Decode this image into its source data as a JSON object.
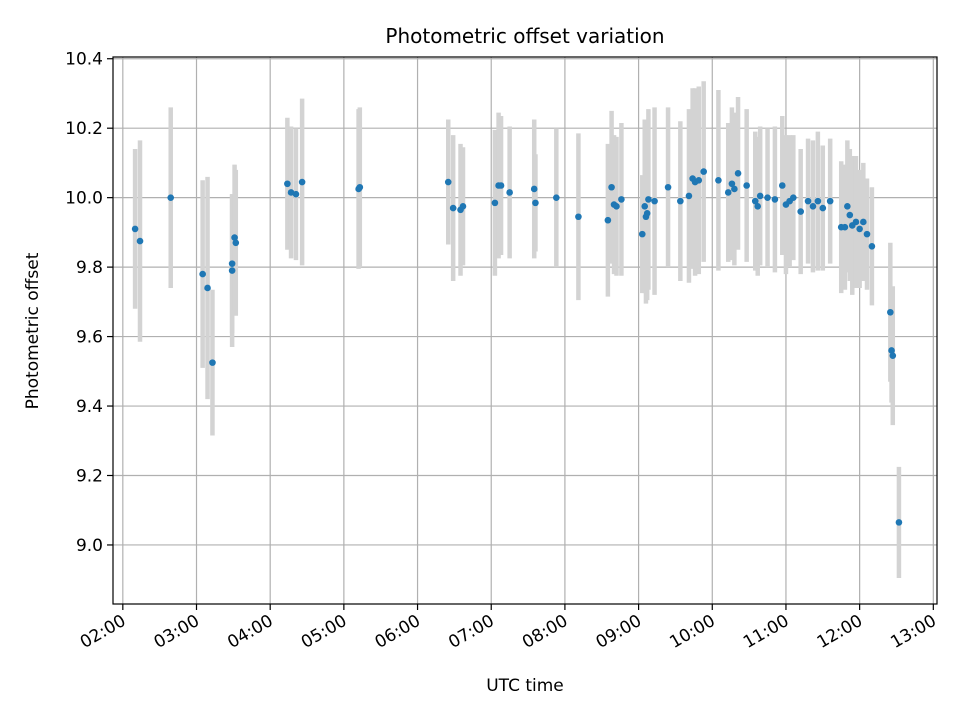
{
  "chart_data": {
    "type": "scatter",
    "title": "Photometric offset variation",
    "xlabel": "UTC time",
    "ylabel": "Photometric offset",
    "xlim": [
      "01:52",
      "13:03"
    ],
    "ylim": [
      8.83,
      10.405
    ],
    "x_ticks": [
      "02:00",
      "03:00",
      "04:00",
      "05:00",
      "06:00",
      "07:00",
      "08:00",
      "09:00",
      "10:00",
      "11:00",
      "12:00",
      "13:00"
    ],
    "y_ticks": [
      "9.0",
      "9.2",
      "9.4",
      "9.6",
      "9.8",
      "10.0",
      "10.2",
      "10.4"
    ],
    "grid": true,
    "colors": {
      "point": "#1f77b4",
      "errorbar": "#d3d3d3",
      "grid": "#b0b0b0"
    },
    "points": [
      {
        "x": "02:10",
        "y": 9.91,
        "err": 0.23
      },
      {
        "x": "02:14",
        "y": 9.875,
        "err": 0.29
      },
      {
        "x": "02:39",
        "y": 10.0,
        "err": 0.26
      },
      {
        "x": "03:05",
        "y": 9.78,
        "err": 0.27
      },
      {
        "x": "03:09",
        "y": 9.74,
        "err": 0.32
      },
      {
        "x": "03:13",
        "y": 9.525,
        "err": 0.21
      },
      {
        "x": "03:29",
        "y": 9.81,
        "err": 0.2
      },
      {
        "x": "03:29",
        "y": 9.79,
        "err": 0.22
      },
      {
        "x": "03:31",
        "y": 9.885,
        "err": 0.21
      },
      {
        "x": "03:32",
        "y": 9.87,
        "err": 0.21
      },
      {
        "x": "04:14",
        "y": 10.04,
        "err": 0.19
      },
      {
        "x": "04:17",
        "y": 10.015,
        "err": 0.19
      },
      {
        "x": "04:21",
        "y": 10.01,
        "err": 0.19
      },
      {
        "x": "04:26",
        "y": 10.045,
        "err": 0.24
      },
      {
        "x": "05:12",
        "y": 10.025,
        "err": 0.23
      },
      {
        "x": "05:13",
        "y": 10.03,
        "err": 0.23
      },
      {
        "x": "06:25",
        "y": 10.045,
        "err": 0.18
      },
      {
        "x": "06:29",
        "y": 9.97,
        "err": 0.21
      },
      {
        "x": "06:35",
        "y": 9.965,
        "err": 0.19
      },
      {
        "x": "06:37",
        "y": 9.975,
        "err": 0.17
      },
      {
        "x": "07:03",
        "y": 9.985,
        "err": 0.21
      },
      {
        "x": "07:06",
        "y": 10.035,
        "err": 0.21
      },
      {
        "x": "07:08",
        "y": 10.035,
        "err": 0.2
      },
      {
        "x": "07:15",
        "y": 10.015,
        "err": 0.19
      },
      {
        "x": "07:35",
        "y": 10.025,
        "err": 0.2
      },
      {
        "x": "07:36",
        "y": 9.985,
        "err": 0.14
      },
      {
        "x": "07:53",
        "y": 10.0,
        "err": 0.2
      },
      {
        "x": "08:11",
        "y": 9.945,
        "err": 0.24
      },
      {
        "x": "08:35",
        "y": 9.935,
        "err": 0.22
      },
      {
        "x": "08:38",
        "y": 10.03,
        "err": 0.22
      },
      {
        "x": "08:40",
        "y": 9.98,
        "err": 0.2
      },
      {
        "x": "08:42",
        "y": 9.975,
        "err": 0.2
      },
      {
        "x": "08:46",
        "y": 9.995,
        "err": 0.22
      },
      {
        "x": "09:03",
        "y": 9.895,
        "err": 0.17
      },
      {
        "x": "09:05",
        "y": 9.975,
        "err": 0.25
      },
      {
        "x": "09:06",
        "y": 9.945,
        "err": 0.25
      },
      {
        "x": "09:07",
        "y": 9.955,
        "err": 0.25
      },
      {
        "x": "09:08",
        "y": 9.995,
        "err": 0.26
      },
      {
        "x": "09:13",
        "y": 9.99,
        "err": 0.27
      },
      {
        "x": "09:24",
        "y": 10.03,
        "err": 0.23
      },
      {
        "x": "09:34",
        "y": 9.99,
        "err": 0.23
      },
      {
        "x": "09:41",
        "y": 10.005,
        "err": 0.25
      },
      {
        "x": "09:44",
        "y": 10.055,
        "err": 0.26
      },
      {
        "x": "09:46",
        "y": 10.045,
        "err": 0.27
      },
      {
        "x": "09:49",
        "y": 10.05,
        "err": 0.27
      },
      {
        "x": "09:53",
        "y": 10.075,
        "err": 0.26
      },
      {
        "x": "10:05",
        "y": 10.05,
        "err": 0.26
      },
      {
        "x": "10:13",
        "y": 10.015,
        "err": 0.2
      },
      {
        "x": "10:16",
        "y": 10.04,
        "err": 0.22
      },
      {
        "x": "10:18",
        "y": 10.025,
        "err": 0.22
      },
      {
        "x": "10:21",
        "y": 10.07,
        "err": 0.22
      },
      {
        "x": "10:28",
        "y": 10.035,
        "err": 0.22
      },
      {
        "x": "10:35",
        "y": 9.99,
        "err": 0.2
      },
      {
        "x": "10:37",
        "y": 9.975,
        "err": 0.2
      },
      {
        "x": "10:39",
        "y": 10.005,
        "err": 0.2
      },
      {
        "x": "10:45",
        "y": 10.0,
        "err": 0.2
      },
      {
        "x": "10:51",
        "y": 9.995,
        "err": 0.21
      },
      {
        "x": "10:57",
        "y": 10.035,
        "err": 0.2
      },
      {
        "x": "11:00",
        "y": 9.98,
        "err": 0.2
      },
      {
        "x": "11:03",
        "y": 9.99,
        "err": 0.19
      },
      {
        "x": "11:06",
        "y": 10.0,
        "err": 0.18
      },
      {
        "x": "11:12",
        "y": 9.96,
        "err": 0.18
      },
      {
        "x": "11:18",
        "y": 9.99,
        "err": 0.18
      },
      {
        "x": "11:22",
        "y": 9.975,
        "err": 0.19
      },
      {
        "x": "11:26",
        "y": 9.99,
        "err": 0.2
      },
      {
        "x": "11:30",
        "y": 9.97,
        "err": 0.18
      },
      {
        "x": "11:36",
        "y": 9.99,
        "err": 0.18
      },
      {
        "x": "11:45",
        "y": 9.915,
        "err": 0.19
      },
      {
        "x": "11:48",
        "y": 9.915,
        "err": 0.18
      },
      {
        "x": "11:50",
        "y": 9.975,
        "err": 0.19
      },
      {
        "x": "11:52",
        "y": 9.95,
        "err": 0.19
      },
      {
        "x": "11:54",
        "y": 9.92,
        "err": 0.2
      },
      {
        "x": "11:57",
        "y": 9.93,
        "err": 0.19
      },
      {
        "x": "12:00",
        "y": 9.91,
        "err": 0.17
      },
      {
        "x": "12:03",
        "y": 9.93,
        "err": 0.17
      },
      {
        "x": "12:06",
        "y": 9.895,
        "err": 0.16
      },
      {
        "x": "12:10",
        "y": 9.86,
        "err": 0.17
      },
      {
        "x": "12:25",
        "y": 9.67,
        "err": 0.2
      },
      {
        "x": "12:26",
        "y": 9.56,
        "err": 0.15
      },
      {
        "x": "12:27",
        "y": 9.545,
        "err": 0.2
      },
      {
        "x": "12:32",
        "y": 9.065,
        "err": 0.16
      }
    ]
  }
}
